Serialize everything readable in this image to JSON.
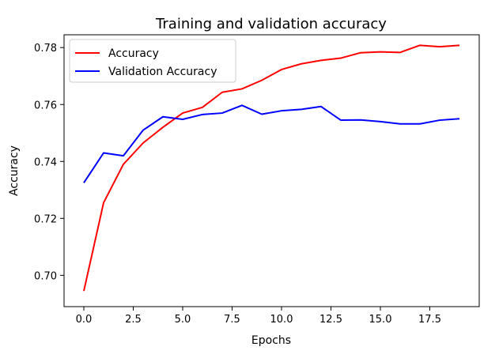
{
  "chart_data": {
    "type": "line",
    "title": "Training and validation accuracy",
    "xlabel": "Epochs",
    "ylabel": "Accuracy",
    "xlim": [
      -1,
      20
    ],
    "ylim": [
      0.689,
      0.7845
    ],
    "x_ticks": [
      0.0,
      2.5,
      5.0,
      7.5,
      10.0,
      12.5,
      15.0,
      17.5
    ],
    "x_tick_labels": [
      "0.0",
      "2.5",
      "5.0",
      "7.5",
      "10.0",
      "12.5",
      "15.0",
      "17.5"
    ],
    "y_ticks": [
      0.7,
      0.72,
      0.74,
      0.76,
      0.78
    ],
    "y_tick_labels": [
      "0.70",
      "0.72",
      "0.74",
      "0.76",
      "0.78"
    ],
    "grid": false,
    "legend_position": "top-left",
    "x": [
      0,
      1,
      2,
      3,
      4,
      5,
      6,
      7,
      8,
      9,
      10,
      11,
      12,
      13,
      14,
      15,
      16,
      17,
      18,
      19
    ],
    "series": [
      {
        "name": "Accuracy",
        "color": "#ff0000",
        "values": [
          0.6945,
          0.7255,
          0.739,
          0.7465,
          0.752,
          0.757,
          0.759,
          0.7643,
          0.7655,
          0.7685,
          0.7723,
          0.7743,
          0.7755,
          0.7763,
          0.7782,
          0.7785,
          0.7783,
          0.7808,
          0.7803,
          0.7808
        ]
      },
      {
        "name": "Validation Accuracy",
        "color": "#0000ff",
        "values": [
          0.7325,
          0.743,
          0.742,
          0.751,
          0.7557,
          0.7548,
          0.7565,
          0.757,
          0.7597,
          0.7566,
          0.7578,
          0.7583,
          0.7593,
          0.7545,
          0.7546,
          0.754,
          0.7532,
          0.7532,
          0.7545,
          0.755
        ]
      }
    ]
  }
}
